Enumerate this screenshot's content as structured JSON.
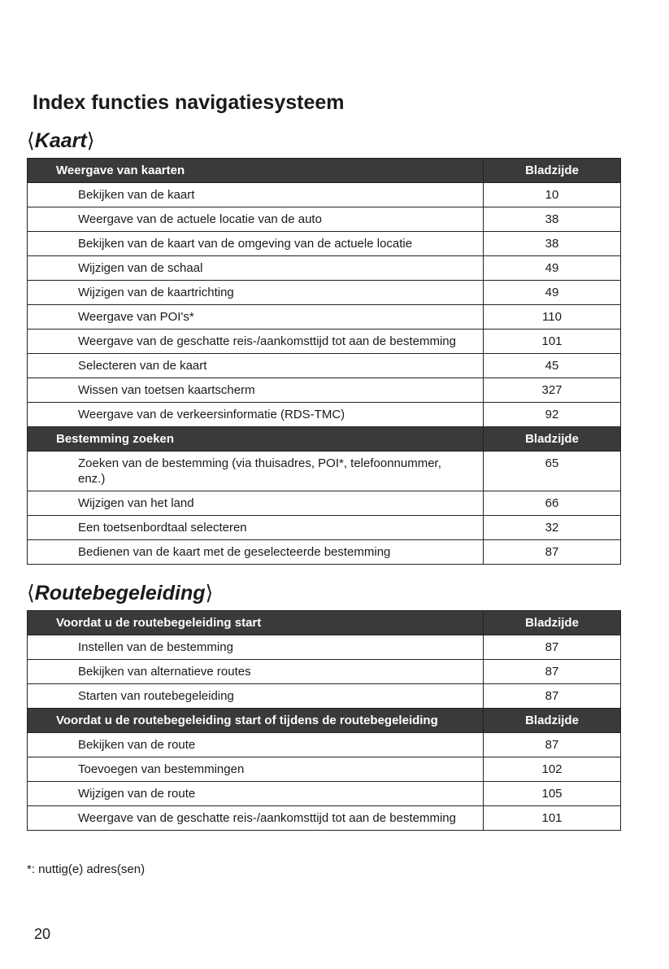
{
  "title": "Index functies navigatiesysteem",
  "sections": [
    {
      "heading": "Kaart",
      "groups": [
        {
          "header": "Weergave van kaarten",
          "page_label": "Bladzijde",
          "rows": [
            {
              "text": "Bekijken van de kaart",
              "page": "10"
            },
            {
              "text": "Weergave van de actuele locatie van de auto",
              "page": "38"
            },
            {
              "text": "Bekijken van de kaart van de omgeving van de actuele locatie",
              "page": "38"
            },
            {
              "text": "Wijzigen van de schaal",
              "page": "49"
            },
            {
              "text": "Wijzigen van de kaartrichting",
              "page": "49"
            },
            {
              "text": "Weergave van POI's*",
              "page": "110"
            },
            {
              "text": "Weergave van de geschatte reis-/aankomsttijd tot aan de bestemming",
              "page": "101"
            },
            {
              "text": "Selecteren van de kaart",
              "page": "45"
            },
            {
              "text": "Wissen van toetsen kaartscherm",
              "page": "327"
            },
            {
              "text": "Weergave van de verkeersinformatie (RDS-TMC)",
              "page": "92"
            }
          ]
        },
        {
          "header": "Bestemming zoeken",
          "page_label": "Bladzijde",
          "rows": [
            {
              "text": "Zoeken van de bestemming (via thuisadres, POI*, telefoonnummer, enz.)",
              "page": "65"
            },
            {
              "text": "Wijzigen van het land",
              "page": "66"
            },
            {
              "text": "Een toetsenbordtaal selecteren",
              "page": "32"
            },
            {
              "text": "Bedienen van de kaart met de geselecteerde bestemming",
              "page": "87"
            }
          ]
        }
      ]
    },
    {
      "heading": "Routebegeleiding",
      "groups": [
        {
          "header": "Voordat u de routebegeleiding start",
          "page_label": "Bladzijde",
          "rows": [
            {
              "text": "Instellen van de bestemming",
              "page": "87"
            },
            {
              "text": "Bekijken van alternatieve routes",
              "page": "87"
            },
            {
              "text": "Starten van routebegeleiding",
              "page": "87"
            }
          ]
        },
        {
          "header": "Voordat u de routebegeleiding start of tijdens de routebegeleiding",
          "page_label": "Bladzijde",
          "rows": [
            {
              "text": "Bekijken van de route",
              "page": "87"
            },
            {
              "text": "Toevoegen van bestemmingen",
              "page": "102"
            },
            {
              "text": "Wijzigen van de route",
              "page": "105"
            },
            {
              "text": "Weergave van de geschatte reis-/aankomsttijd tot aan de bestemming",
              "page": "101"
            }
          ]
        }
      ]
    }
  ],
  "footnote": "*: nuttig(e) adres(sen)",
  "page_number": "20"
}
